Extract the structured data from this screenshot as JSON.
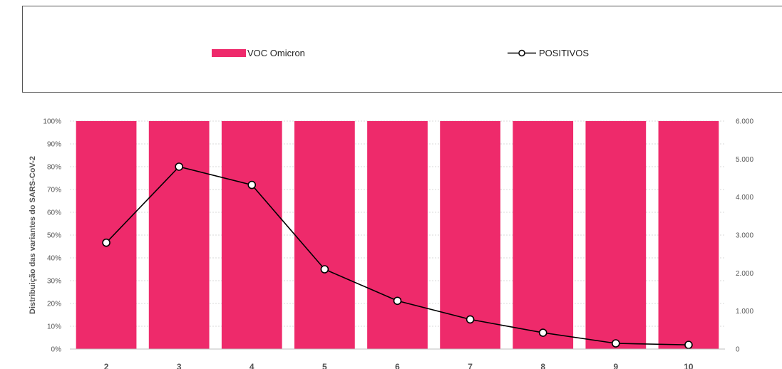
{
  "legend": {
    "bar_label": "VOC Omicron",
    "line_label": "POSITIVOS"
  },
  "chart_data": {
    "type": "bar+line",
    "categories": [
      "2",
      "3",
      "4",
      "5",
      "6",
      "7",
      "8",
      "9",
      "10"
    ],
    "series": [
      {
        "name": "VOC Omicron",
        "type": "bar",
        "axis": "left",
        "values": [
          100,
          100,
          100,
          100,
          100,
          100,
          100,
          100,
          100
        ],
        "color": "#ee2a6b"
      },
      {
        "name": "POSITIVOS",
        "type": "line",
        "axis": "right",
        "values": [
          2800,
          4800,
          4320,
          2100,
          1270,
          780,
          430,
          150,
          110
        ],
        "color": "#000000"
      }
    ],
    "ylabel": "Distribuição das variantes do SARS-CoV-2",
    "ylim": [
      0,
      100
    ],
    "y_ticks": [
      "0%",
      "10%",
      "20%",
      "30%",
      "40%",
      "50%",
      "60%",
      "70%",
      "80%",
      "90%",
      "100%"
    ],
    "y2lim": [
      0,
      6000
    ],
    "y2_ticks": [
      "0",
      "1.000",
      "2.000",
      "3.000",
      "4.000",
      "5.000",
      "6.000"
    ],
    "grid": true,
    "legend_position": "top"
  }
}
